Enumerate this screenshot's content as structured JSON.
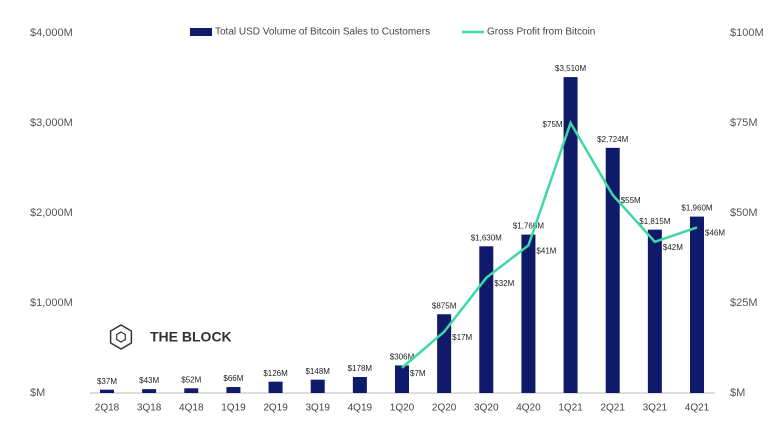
{
  "chart_data": {
    "type": "bar_line",
    "watermark": "THE BLOCK",
    "categories": [
      "2Q18",
      "3Q18",
      "4Q18",
      "1Q19",
      "2Q19",
      "3Q19",
      "4Q19",
      "1Q20",
      "2Q20",
      "3Q20",
      "4Q20",
      "1Q21",
      "2Q21",
      "3Q21",
      "4Q21"
    ],
    "series": [
      {
        "name": "Total USD Volume of Bitcoin Sales to Customers",
        "color": "#0f1a6b",
        "type": "bar",
        "values": [
          37,
          43,
          52,
          66,
          126,
          148,
          178,
          306,
          875,
          1630,
          1760,
          3510,
          2724,
          1815,
          1960
        ],
        "value_labels": [
          "$37M",
          "$43M",
          "$52M",
          "$66M",
          "$126M",
          "$148M",
          "$178M",
          "$306M",
          "$875M",
          "$1,630M",
          "$1,760M",
          "$3,510M",
          "$2,724M",
          "$1,815M",
          "$1,960M"
        ]
      },
      {
        "name": "Gross Profit from Bitcoin",
        "color": "#3fd8a0",
        "type": "line",
        "axis": "y2",
        "values": [
          null,
          null,
          null,
          null,
          null,
          null,
          null,
          7,
          17,
          32,
          41,
          75,
          55,
          42,
          46
        ],
        "value_labels": [
          null,
          null,
          null,
          null,
          null,
          null,
          null,
          "$7M",
          "$17M",
          "$32M",
          "$41M",
          "$75M",
          "$55M",
          "$42M",
          "$46M"
        ]
      }
    ],
    "ylim": [
      0,
      4000
    ],
    "yticks": [
      {
        "value": 0,
        "label": "$M"
      },
      {
        "value": 1000,
        "label": "$1,000M"
      },
      {
        "value": 2000,
        "label": "$2,000M"
      },
      {
        "value": 3000,
        "label": "$3,000M"
      },
      {
        "value": 4000,
        "label": "$4,000M"
      }
    ],
    "y2lim": [
      0,
      100
    ],
    "y2ticks": [
      {
        "value": 0,
        "label": "$M"
      },
      {
        "value": 25,
        "label": "$25M"
      },
      {
        "value": 50,
        "label": "$50M"
      },
      {
        "value": 75,
        "label": "$75M"
      },
      {
        "value": 100,
        "label": "$100M"
      }
    ]
  }
}
